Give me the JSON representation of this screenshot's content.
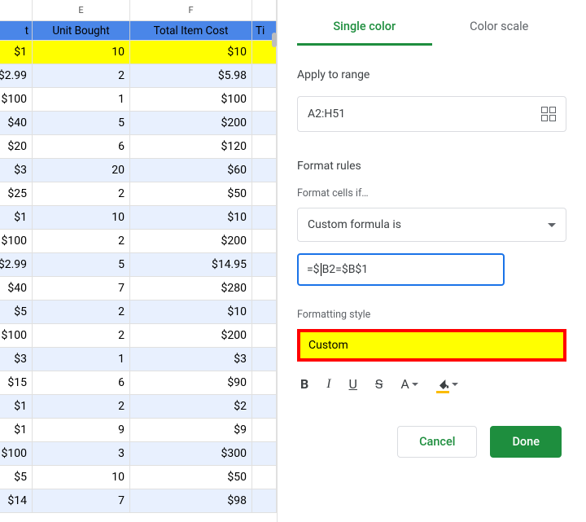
{
  "sheet": {
    "colLabels": {
      "d": "",
      "e": "E",
      "f": "F",
      "g": ""
    },
    "headers": {
      "d": "t",
      "e": "Unit Bought",
      "f": "Total Item Cost",
      "g": "Ti"
    },
    "rows": [
      {
        "d": "$1",
        "e": "10",
        "f": "$10",
        "hl": true,
        "band": false
      },
      {
        "d": "$2.99",
        "e": "2",
        "f": "$5.98",
        "hl": false,
        "band": true
      },
      {
        "d": "$100",
        "e": "1",
        "f": "$100",
        "hl": false,
        "band": false
      },
      {
        "d": "$40",
        "e": "5",
        "f": "$200",
        "hl": false,
        "band": true
      },
      {
        "d": "$20",
        "e": "6",
        "f": "$120",
        "hl": false,
        "band": false
      },
      {
        "d": "$3",
        "e": "20",
        "f": "$60",
        "hl": false,
        "band": true
      },
      {
        "d": "$25",
        "e": "2",
        "f": "$50",
        "hl": false,
        "band": false
      },
      {
        "d": "$1",
        "e": "10",
        "f": "$10",
        "hl": false,
        "band": true
      },
      {
        "d": "$100",
        "e": "2",
        "f": "$200",
        "hl": false,
        "band": false
      },
      {
        "d": "$2.99",
        "e": "5",
        "f": "$14.95",
        "hl": false,
        "band": true
      },
      {
        "d": "$40",
        "e": "7",
        "f": "$280",
        "hl": false,
        "band": false
      },
      {
        "d": "$5",
        "e": "2",
        "f": "$10",
        "hl": false,
        "band": true
      },
      {
        "d": "$100",
        "e": "2",
        "f": "$200",
        "hl": false,
        "band": false
      },
      {
        "d": "$3",
        "e": "1",
        "f": "$3",
        "hl": false,
        "band": true
      },
      {
        "d": "$15",
        "e": "6",
        "f": "$90",
        "hl": false,
        "band": false
      },
      {
        "d": "$1",
        "e": "2",
        "f": "$2",
        "hl": false,
        "band": true
      },
      {
        "d": "$1",
        "e": "9",
        "f": "$9",
        "hl": false,
        "band": false
      },
      {
        "d": "$100",
        "e": "3",
        "f": "$300",
        "hl": false,
        "band": true
      },
      {
        "d": "$5",
        "e": "10",
        "f": "$50",
        "hl": false,
        "band": false
      },
      {
        "d": "$14",
        "e": "7",
        "f": "$98",
        "hl": false,
        "band": true
      }
    ]
  },
  "panel": {
    "tabs": {
      "single": "Single color",
      "scale": "Color scale"
    },
    "applyLabel": "Apply to range",
    "rangeValue": "A2:H51",
    "rulesLabel": "Format rules",
    "cellsIfLabel": "Format cells if…",
    "conditionValue": "Custom formula is",
    "formulaPrefix": "=$",
    "formulaSuffix": "B2=$B$1",
    "styleLabel": "Formatting style",
    "stylePreview": "Custom",
    "buttons": {
      "cancel": "Cancel",
      "done": "Done"
    },
    "colors": {
      "highlight": "#ffff00",
      "highlightBorder": "#ff0000",
      "accent": "#1e8e3e",
      "inputBorder": "#1a73e8",
      "headerBand": "#4a86e8",
      "rowBand": "#e8f0fe",
      "fillUnderline": "#fbbc04"
    }
  }
}
